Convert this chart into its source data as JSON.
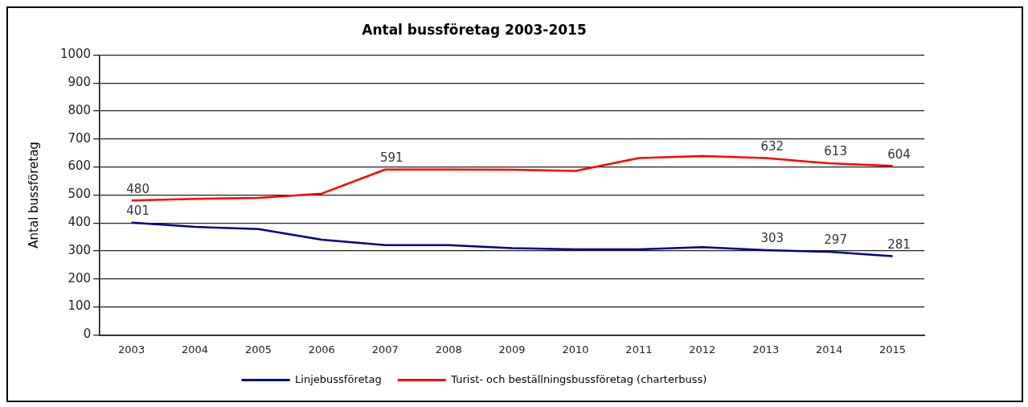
{
  "chart_data": {
    "type": "line",
    "title": "Antal bussföretag 2003-2015",
    "ylabel": "Antal bussföretag",
    "categories": [
      "2003",
      "2004",
      "2005",
      "2006",
      "2007",
      "2008",
      "2009",
      "2010",
      "2011",
      "2012",
      "2013",
      "2014",
      "2015"
    ],
    "series": [
      {
        "name": "Linjebussföretag",
        "color": "#00008b",
        "values": [
          401,
          386,
          378,
          340,
          321,
          321,
          310,
          306,
          306,
          314,
          303,
          297,
          281
        ],
        "value_labels": [
          "401",
          null,
          null,
          null,
          null,
          null,
          null,
          null,
          null,
          null,
          "303",
          "297",
          "281"
        ]
      },
      {
        "name": "Turist- och beställningsbussföretag (charterbuss)",
        "color": "#ff0000",
        "values": [
          480,
          486,
          490,
          505,
          591,
          591,
          590,
          586,
          632,
          639,
          632,
          613,
          604
        ],
        "value_labels": [
          "480",
          null,
          null,
          null,
          "591",
          null,
          null,
          null,
          null,
          null,
          "632",
          "613",
          "604"
        ]
      }
    ],
    "ylim": [
      0,
      1000
    ],
    "yticks": [
      0,
      100,
      200,
      300,
      400,
      500,
      600,
      700,
      800,
      900,
      1000
    ],
    "grid": "y",
    "legend": "bottom",
    "marker": "none",
    "line_style": "solid"
  }
}
